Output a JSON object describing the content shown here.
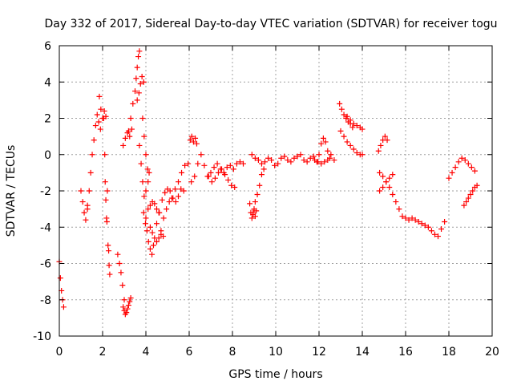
{
  "chart_data": {
    "type": "scatter",
    "title": "Day 332 of 2017, Sidereal Day-to-day VTEC variation (SDTVAR) for receiver togu",
    "xlabel": "GPS time / hours",
    "ylabel": "SDTVAR / TECUs",
    "xlim": [
      0,
      20
    ],
    "ylim": [
      -10,
      6
    ],
    "grid": true,
    "x_ticks": [
      0,
      2,
      4,
      6,
      8,
      10,
      12,
      14,
      16,
      18,
      20
    ],
    "x_tick_labels": [
      "0",
      "2",
      "4",
      "6",
      "8",
      "10",
      "12",
      "14",
      "16",
      "18",
      "20"
    ],
    "y_ticks": [
      -10,
      -8,
      -6,
      -4,
      -2,
      0,
      2,
      4,
      6
    ],
    "y_tick_labels": [
      "-10",
      "-8",
      "-6",
      "-4",
      "-2",
      "0",
      "2",
      "4",
      "6"
    ],
    "marker": "+",
    "color": "#ff0000",
    "series": [
      {
        "name": "s01",
        "x": [
          0.0,
          0.05,
          0.1,
          0.15,
          0.2
        ],
        "y": [
          -5.9,
          -6.8,
          -7.5,
          -8.0,
          -8.4
        ]
      },
      {
        "name": "s02",
        "x": [
          1.0,
          1.08,
          1.15,
          1.22,
          1.3
        ],
        "y": [
          -2.0,
          -2.6,
          -3.2,
          -3.6,
          -3.0
        ]
      },
      {
        "name": "s03",
        "x": [
          1.3,
          1.38,
          1.45,
          1.52,
          1.6,
          1.68,
          1.75,
          1.82,
          1.9
        ],
        "y": [
          -2.8,
          -2.0,
          -1.0,
          0.0,
          0.8,
          1.6,
          2.2,
          1.8,
          1.4
        ]
      },
      {
        "name": "s04",
        "x": [
          1.85,
          1.92,
          2.0,
          2.08,
          2.15
        ],
        "y": [
          3.2,
          2.5,
          2.0,
          2.4,
          2.1
        ]
      },
      {
        "name": "s05",
        "x": [
          2.05,
          2.1,
          2.12,
          2.15,
          2.18,
          2.2,
          2.22
        ],
        "y": [
          2.0,
          0.0,
          -1.5,
          -2.5,
          -3.5,
          -3.7,
          -2.0
        ]
      },
      {
        "name": "s06",
        "x": [
          2.25,
          2.28,
          2.3,
          2.33
        ],
        "y": [
          -5.0,
          -5.3,
          -6.1,
          -6.6
        ]
      },
      {
        "name": "s07",
        "x": [
          2.7,
          2.78,
          2.85,
          2.92,
          3.0
        ],
        "y": [
          -5.5,
          -6.0,
          -6.5,
          -7.2,
          -8.0
        ]
      },
      {
        "name": "s08",
        "x": [
          2.95,
          3.0,
          3.05,
          3.1,
          3.15,
          3.2,
          3.25,
          3.3
        ],
        "y": [
          -8.4,
          -8.6,
          -8.8,
          -8.7,
          -8.5,
          -8.3,
          -8.1,
          -7.9
        ]
      },
      {
        "name": "s09",
        "x": [
          2.95,
          3.05,
          3.15,
          3.25,
          3.35
        ],
        "y": [
          0.5,
          0.9,
          1.2,
          1.0,
          1.4
        ]
      },
      {
        "name": "s10",
        "x": [
          3.2,
          3.3,
          3.4,
          3.5,
          3.55,
          3.6,
          3.65,
          3.7
        ],
        "y": [
          1.3,
          2.0,
          2.8,
          3.5,
          4.2,
          4.8,
          5.4,
          5.7
        ]
      },
      {
        "name": "s11",
        "x": [
          3.6,
          3.68,
          3.75,
          3.82,
          3.9
        ],
        "y": [
          3.0,
          3.4,
          3.9,
          4.3,
          4.0
        ]
      },
      {
        "name": "s12",
        "x": [
          3.85,
          3.92,
          4.0,
          4.08,
          4.15
        ],
        "y": [
          2.0,
          1.0,
          0.0,
          -0.8,
          -1.0
        ]
      },
      {
        "name": "s13",
        "x": [
          3.7,
          3.78,
          3.85,
          3.92,
          4.0,
          4.1
        ],
        "y": [
          0.5,
          -0.5,
          -1.5,
          -2.3,
          -2.0,
          -1.5
        ]
      },
      {
        "name": "s14",
        "x": [
          3.9,
          3.98,
          4.05,
          4.12,
          4.2,
          4.28,
          4.35
        ],
        "y": [
          -3.2,
          -3.8,
          -4.2,
          -4.8,
          -5.2,
          -5.5,
          -5.0
        ]
      },
      {
        "name": "s15",
        "x": [
          4.2,
          4.3,
          4.4,
          4.5,
          4.6,
          4.7,
          4.8
        ],
        "y": [
          -4.0,
          -4.3,
          -4.6,
          -4.8,
          -4.6,
          -4.2,
          -4.5
        ]
      },
      {
        "name": "s16",
        "x": [
          4.0,
          4.1,
          4.2,
          4.3,
          4.4,
          4.5,
          4.6
        ],
        "y": [
          -3.5,
          -3.0,
          -2.8,
          -2.6,
          -2.7,
          -3.0,
          -3.2
        ]
      },
      {
        "name": "s17",
        "x": [
          4.5,
          4.62,
          4.75,
          4.88,
          5.0,
          5.12,
          5.25,
          5.38,
          5.5,
          5.62,
          5.75
        ],
        "y": [
          -3.8,
          -3.2,
          -2.5,
          -2.1,
          -1.9,
          -2.0,
          -2.4,
          -2.6,
          -2.3,
          -1.9,
          -2.0
        ]
      },
      {
        "name": "s18",
        "x": [
          4.7,
          4.82,
          4.95,
          5.08,
          5.2,
          5.35,
          5.5,
          5.65,
          5.8,
          5.95
        ],
        "y": [
          -4.4,
          -3.5,
          -3.0,
          -2.6,
          -2.4,
          -1.9,
          -1.5,
          -1.0,
          -0.6,
          -0.5
        ]
      },
      {
        "name": "s19",
        "x": [
          6.05,
          6.12,
          6.2,
          6.28,
          6.35
        ],
        "y": [
          0.8,
          1.0,
          0.7,
          0.9,
          0.6
        ]
      },
      {
        "name": "s20",
        "x": [
          6.1,
          6.25,
          6.4,
          6.55,
          6.7,
          6.85,
          7.0,
          7.15,
          7.3,
          7.45,
          7.6,
          7.75,
          7.9,
          8.05,
          8.2,
          8.35,
          8.5
        ],
        "y": [
          -1.5,
          -1.2,
          -0.5,
          0.0,
          -0.6,
          -1.2,
          -1.0,
          -0.7,
          -0.5,
          -0.8,
          -1.0,
          -0.7,
          -0.6,
          -0.8,
          -0.5,
          -0.4,
          -0.5
        ]
      },
      {
        "name": "s21",
        "x": [
          6.9,
          7.05,
          7.2,
          7.35,
          7.5,
          7.65,
          7.8,
          7.95,
          8.1
        ],
        "y": [
          -1.2,
          -1.5,
          -1.3,
          -1.0,
          -0.8,
          -1.1,
          -1.4,
          -1.7,
          -1.8
        ]
      },
      {
        "name": "s22",
        "x": [
          8.8,
          8.85,
          8.9,
          8.95,
          9.0,
          9.05,
          9.1
        ],
        "y": [
          -2.7,
          -3.2,
          -3.5,
          -3.3,
          -3.0,
          -3.4,
          -3.1
        ]
      },
      {
        "name": "s23",
        "x": [
          8.95,
          9.05,
          9.15,
          9.25,
          9.35,
          9.45
        ],
        "y": [
          -3.2,
          -2.6,
          -2.2,
          -1.7,
          -1.1,
          -0.8
        ]
      },
      {
        "name": "s24",
        "x": [
          8.9,
          9.05,
          9.2,
          9.35,
          9.5,
          9.65,
          9.8,
          9.95,
          10.1,
          10.25,
          10.4,
          10.55,
          10.7,
          10.85,
          11.0,
          11.15,
          11.3,
          11.45,
          11.6,
          11.75
        ],
        "y": [
          0.0,
          -0.2,
          -0.3,
          -0.5,
          -0.4,
          -0.2,
          -0.3,
          -0.6,
          -0.5,
          -0.2,
          -0.1,
          -0.3,
          -0.4,
          -0.2,
          -0.1,
          0.0,
          -0.3,
          -0.4,
          -0.2,
          -0.1
        ]
      },
      {
        "name": "s25",
        "x": [
          11.9,
          12.0,
          12.1,
          12.2,
          12.3,
          12.4,
          12.5
        ],
        "y": [
          -0.4,
          0.0,
          0.6,
          0.9,
          0.7,
          0.2,
          -0.2
        ]
      },
      {
        "name": "s26",
        "x": [
          11.8,
          11.95,
          12.1,
          12.25,
          12.4,
          12.55,
          12.7
        ],
        "y": [
          -0.3,
          -0.4,
          -0.5,
          -0.4,
          -0.3,
          0.0,
          -0.3
        ]
      },
      {
        "name": "s27",
        "x": [
          12.95,
          13.05,
          13.15,
          13.3,
          13.45,
          13.6,
          13.75,
          13.9,
          14.0
        ],
        "y": [
          2.8,
          2.5,
          2.2,
          2.1,
          1.9,
          1.7,
          1.6,
          1.5,
          1.4
        ]
      },
      {
        "name": "s28",
        "x": [
          13.0,
          13.15,
          13.3,
          13.45,
          13.6,
          13.75,
          13.9,
          14.0
        ],
        "y": [
          1.3,
          1.0,
          0.7,
          0.5,
          0.3,
          0.1,
          0.0,
          0.0
        ]
      },
      {
        "name": "s29",
        "x": [
          13.25,
          13.35,
          13.45,
          13.55
        ],
        "y": [
          2.0,
          1.8,
          1.7,
          1.5
        ]
      },
      {
        "name": "s30",
        "x": [
          14.75,
          14.85,
          14.95,
          15.05,
          15.15
        ],
        "y": [
          0.2,
          0.5,
          0.8,
          1.0,
          0.8
        ]
      },
      {
        "name": "s31",
        "x": [
          14.8,
          14.95,
          15.1,
          15.25,
          15.4,
          15.55,
          15.7,
          15.85,
          16.0,
          16.15,
          16.3,
          16.45,
          16.6,
          16.75,
          16.9,
          17.05,
          17.2,
          17.35,
          17.5,
          17.65,
          17.8
        ],
        "y": [
          -1.0,
          -1.2,
          -1.5,
          -1.8,
          -2.2,
          -2.6,
          -3.0,
          -3.4,
          -3.5,
          -3.6,
          -3.5,
          -3.6,
          -3.7,
          -3.8,
          -3.9,
          -4.0,
          -4.2,
          -4.4,
          -4.5,
          -4.1,
          -3.7
        ]
      },
      {
        "name": "s32",
        "x": [
          14.8,
          14.95,
          15.1,
          15.25,
          15.4
        ],
        "y": [
          -2.0,
          -1.8,
          -1.5,
          -1.3,
          -1.1
        ]
      },
      {
        "name": "s33",
        "x": [
          18.0,
          18.15,
          18.3,
          18.45,
          18.6,
          18.75,
          18.9,
          19.05,
          19.2
        ],
        "y": [
          -1.3,
          -1.0,
          -0.7,
          -0.4,
          -0.2,
          -0.3,
          -0.5,
          -0.7,
          -0.9
        ]
      },
      {
        "name": "s34",
        "x": [
          18.7,
          18.8,
          18.9,
          19.0,
          19.1,
          19.2,
          19.3
        ],
        "y": [
          -2.8,
          -2.6,
          -2.4,
          -2.2,
          -2.0,
          -1.8,
          -1.7
        ]
      }
    ]
  }
}
